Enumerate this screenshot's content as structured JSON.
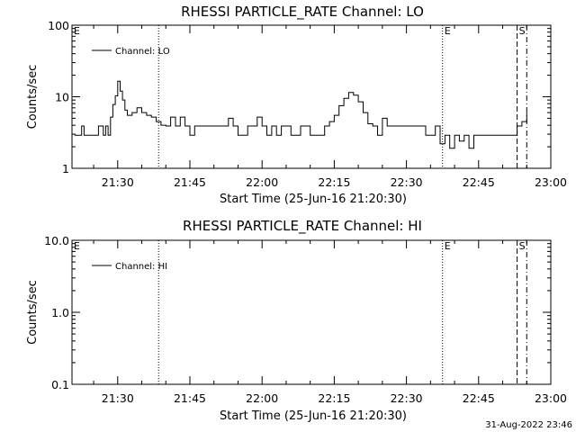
{
  "timestamp": "31-Aug-2022 23:46",
  "chart_data": [
    {
      "type": "line",
      "title": "RHESSI PARTICLE_RATE Channel: LO",
      "xlabel": "Start Time (25-Jun-16 21:20:30)",
      "ylabel": "Counts/sec",
      "y_scale": "log",
      "ylim": [
        1,
        100
      ],
      "y_ticks": [
        "1",
        "10",
        "100"
      ],
      "xlim": [
        "21:20:30",
        "23:00:00"
      ],
      "x_ticks": [
        "21:30",
        "21:45",
        "22:00",
        "22:15",
        "22:30",
        "22:45",
        "23:00"
      ],
      "legend": {
        "label": "Channel: LO",
        "position": "top-left"
      },
      "markers": [
        {
          "label": "E",
          "time": "21:20:30",
          "style": "none"
        },
        {
          "label": "",
          "time": "21:38:30",
          "style": "dotted"
        },
        {
          "label": "E",
          "time": "22:37:30",
          "style": "dotted"
        },
        {
          "label": "S",
          "time": "22:53:00",
          "style": "dashed"
        },
        {
          "label": "",
          "time": "22:55:00",
          "style": "dashdot"
        }
      ],
      "series": [
        {
          "name": "Channel: LO",
          "x": [
            "21:21:00",
            "21:22:00",
            "21:22:30",
            "21:23:00",
            "21:24:00",
            "21:25:00",
            "21:25:30",
            "21:26:00",
            "21:27:00",
            "21:27:30",
            "21:28:00",
            "21:28:30",
            "21:29:00",
            "21:29:30",
            "21:30:00",
            "21:30:30",
            "21:31:00",
            "21:31:30",
            "21:32:00",
            "21:33:00",
            "21:34:00",
            "21:35:00",
            "21:36:00",
            "21:37:00",
            "21:38:00",
            "21:39:00",
            "21:40:00",
            "21:41:00",
            "21:42:00",
            "21:43:00",
            "21:44:00",
            "21:45:00",
            "21:46:00",
            "21:48:00",
            "21:50:00",
            "21:52:00",
            "21:53:00",
            "21:54:00",
            "21:55:00",
            "21:57:00",
            "21:59:00",
            "22:00:00",
            "22:01:00",
            "22:02:00",
            "22:03:00",
            "22:04:00",
            "22:06:00",
            "22:08:00",
            "22:10:00",
            "22:12:00",
            "22:13:00",
            "22:14:00",
            "22:15:00",
            "22:16:00",
            "22:17:00",
            "22:18:00",
            "22:19:00",
            "22:20:00",
            "22:21:00",
            "22:22:00",
            "22:23:00",
            "22:24:00",
            "22:25:00",
            "22:26:00",
            "22:28:00",
            "22:30:00",
            "22:32:00",
            "22:34:00",
            "22:36:00",
            "22:37:00",
            "22:38:00",
            "22:39:00",
            "22:40:00",
            "22:41:00",
            "22:42:00",
            "22:43:00",
            "22:44:00",
            "22:46:00",
            "22:48:00",
            "22:50:00",
            "22:52:00",
            "22:53:00",
            "22:54:00",
            "22:55:00"
          ],
          "values": [
            2.9,
            2.9,
            3.9,
            2.9,
            2.9,
            2.9,
            2.9,
            3.9,
            2.9,
            3.9,
            2.9,
            5.2,
            7.8,
            10.3,
            16.5,
            12.0,
            9.0,
            6.5,
            5.5,
            6.0,
            7.0,
            6.0,
            5.5,
            5.2,
            4.5,
            4.0,
            3.9,
            5.2,
            3.9,
            5.2,
            3.9,
            2.9,
            3.9,
            3.9,
            3.9,
            3.9,
            5.0,
            3.9,
            2.9,
            3.9,
            5.2,
            3.9,
            2.9,
            3.9,
            2.9,
            3.9,
            2.9,
            3.9,
            2.9,
            2.9,
            3.9,
            4.5,
            5.5,
            7.5,
            9.5,
            11.5,
            10.5,
            8.5,
            6.0,
            4.2,
            3.9,
            2.9,
            5.0,
            3.9,
            3.9,
            3.9,
            3.9,
            2.9,
            3.9,
            2.2,
            2.9,
            1.9,
            2.9,
            2.4,
            2.9,
            1.9,
            2.9,
            2.9,
            2.9,
            2.9,
            2.9,
            3.9,
            4.5,
            6.0
          ]
        }
      ]
    },
    {
      "type": "line",
      "title": "RHESSI PARTICLE_RATE Channel: HI",
      "xlabel": "Start Time (25-Jun-16 21:20:30)",
      "ylabel": "Counts/sec",
      "y_scale": "log",
      "ylim": [
        0.1,
        10
      ],
      "y_ticks": [
        "0.1",
        "1.0",
        "10.0"
      ],
      "xlim": [
        "21:20:30",
        "23:00:00"
      ],
      "x_ticks": [
        "21:30",
        "21:45",
        "22:00",
        "22:15",
        "22:30",
        "22:45",
        "23:00"
      ],
      "legend": {
        "label": "Channel: HI",
        "position": "top-left"
      },
      "markers": [
        {
          "label": "E",
          "time": "21:20:30",
          "style": "none"
        },
        {
          "label": "",
          "time": "21:38:30",
          "style": "dotted"
        },
        {
          "label": "E",
          "time": "22:37:30",
          "style": "dotted"
        },
        {
          "label": "S",
          "time": "22:53:00",
          "style": "dashed"
        },
        {
          "label": "",
          "time": "22:55:00",
          "style": "dashdot"
        }
      ],
      "series": [
        {
          "name": "Channel: HI",
          "x": [],
          "values": []
        }
      ]
    }
  ]
}
